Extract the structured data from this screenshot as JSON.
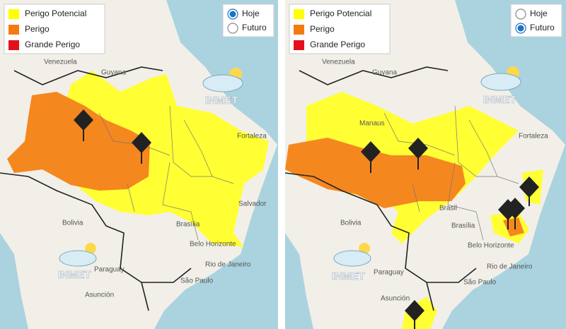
{
  "panels": [
    {
      "legend": [
        "Perigo Potencial",
        "Perigo",
        "Grande Perigo"
      ],
      "radios": [
        {
          "label": "Hoje",
          "checked": true
        },
        {
          "label": "Futuro",
          "checked": false
        }
      ],
      "watermark": "INMET",
      "map_labels": [
        "Venezuela",
        "Guyana",
        "Fortaleza",
        "Salvador",
        "Bolivia",
        "Brasília",
        "Belo Horizonte",
        "Paraguay",
        "Asunción",
        "São Paulo",
        "Rio de Janeiro",
        "INMET"
      ]
    },
    {
      "legend": [
        "Perigo Potencial",
        "Perigo",
        "Grande Perigo"
      ],
      "radios": [
        {
          "label": "Hoje",
          "checked": false
        },
        {
          "label": "Futuro",
          "checked": true
        }
      ],
      "watermark": "INMET",
      "map_labels": [
        "Venezuela",
        "Guyana",
        "Manaus",
        "Fortaleza",
        "Brasil",
        "Brasília",
        "Belo Horizonte",
        "Bolivia",
        "Paraguay",
        "Asunción",
        "São Paulo",
        "Rio de Janeiro",
        "INMET"
      ]
    }
  ]
}
